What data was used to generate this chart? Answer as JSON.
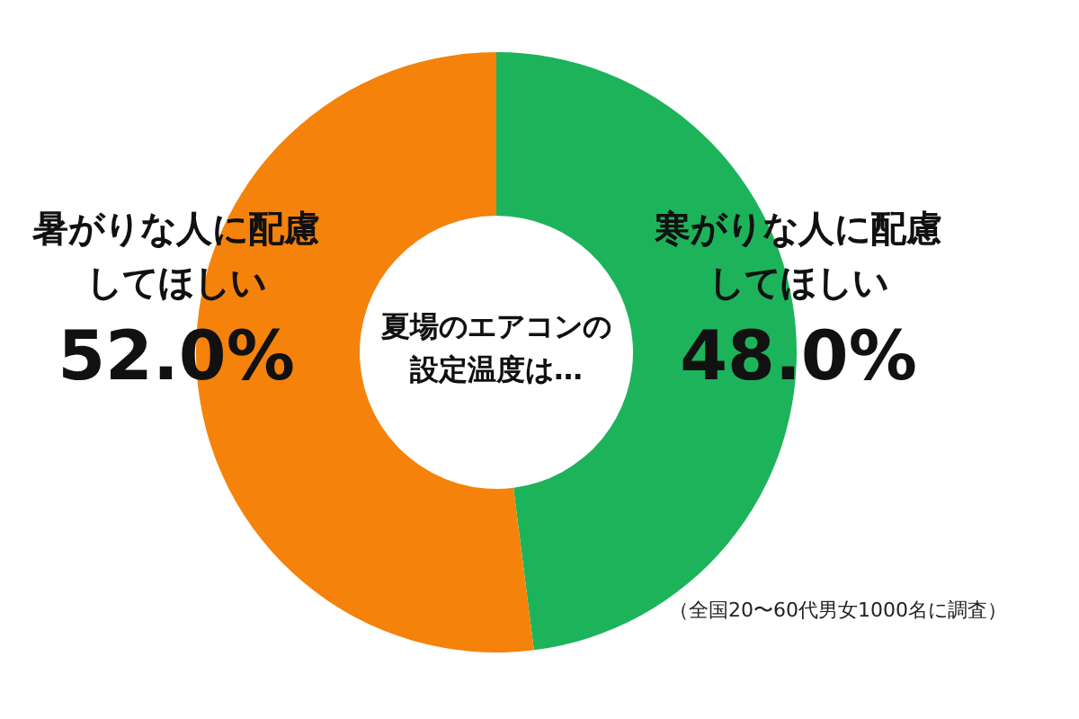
{
  "chart_data": {
    "type": "donut",
    "title": "夏場のエアコンの設定温度は…",
    "categories": [
      "寒がりな人に配慮してほしい",
      "暑がりな人に配慮してほしい"
    ],
    "values": [
      48.0,
      52.0
    ],
    "value_labels": [
      "48.0%",
      "52.0%"
    ],
    "colors": [
      "#1db35b",
      "#f5820b"
    ],
    "annotations": [
      "（全国20〜60代男女1000名に調査）"
    ]
  }
}
